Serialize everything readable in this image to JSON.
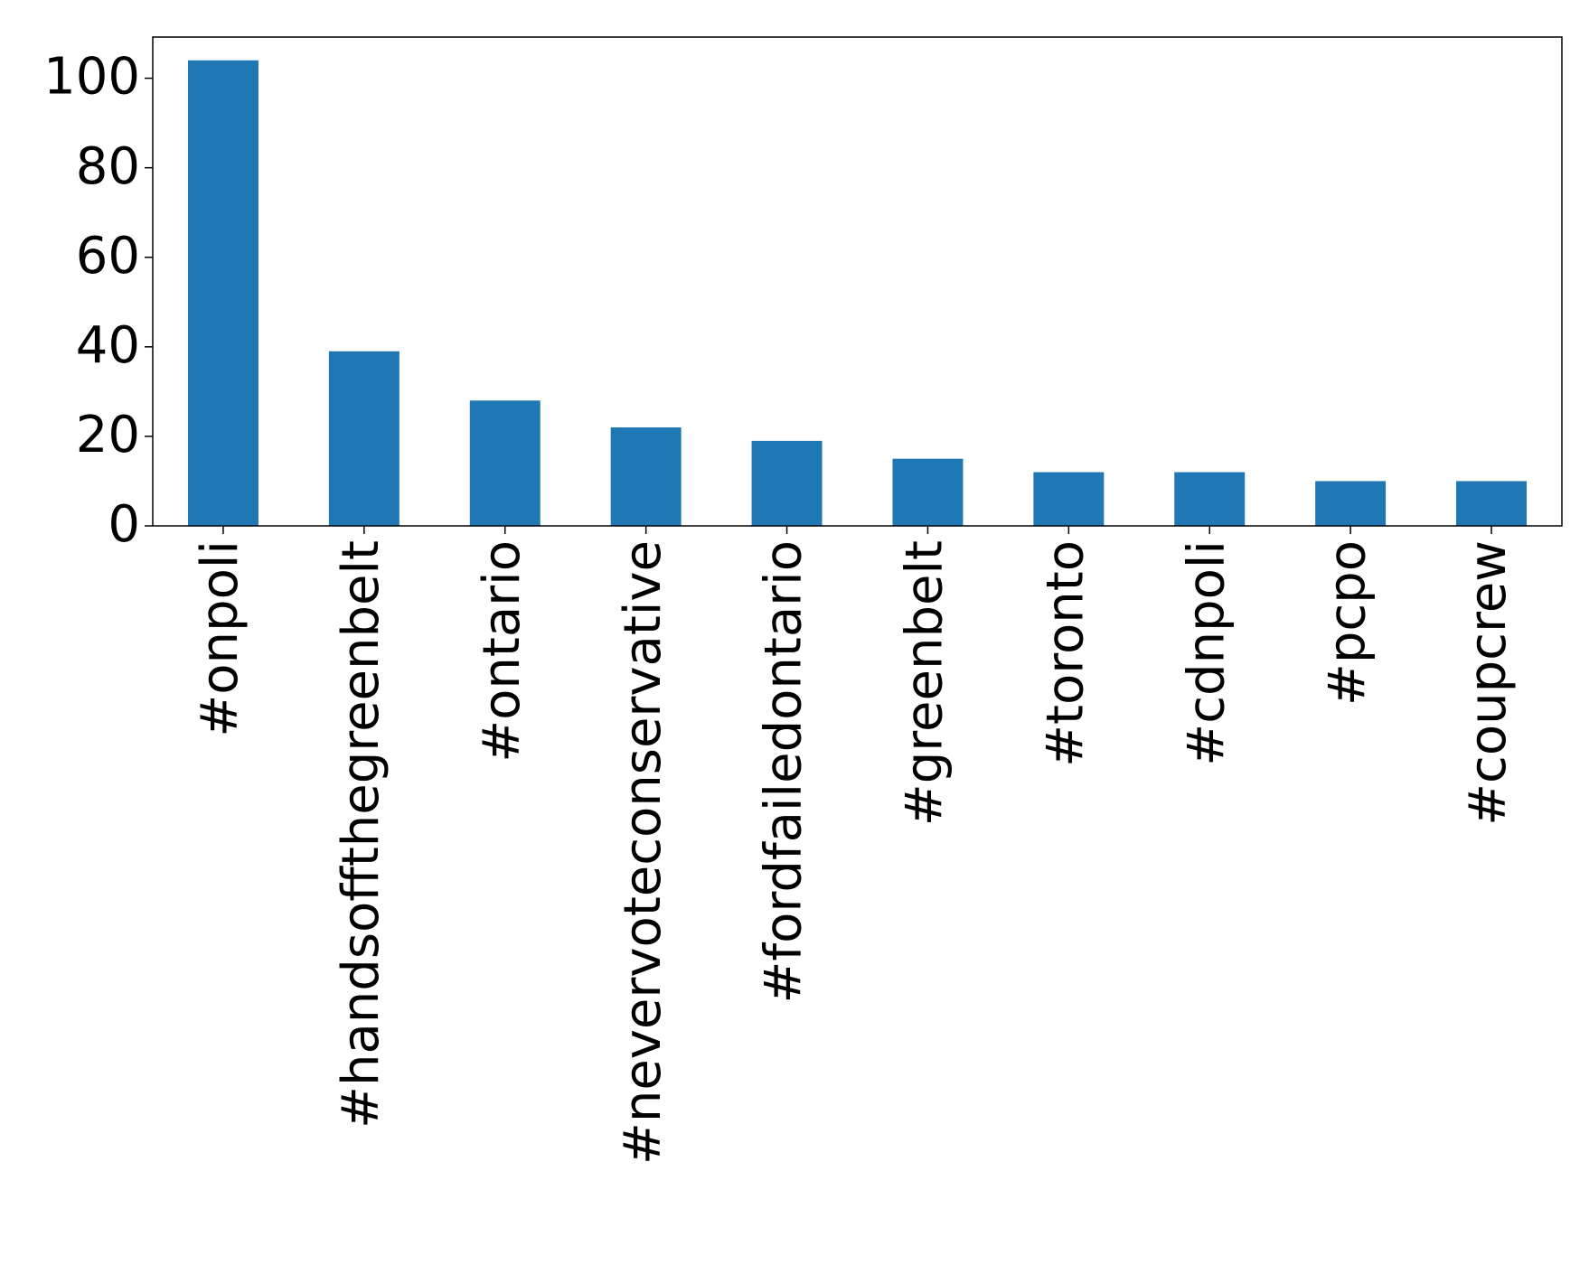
{
  "chart_data": {
    "type": "bar",
    "categories": [
      "#onpoli",
      "#handsoffthegreenbelt",
      "#ontario",
      "#nevervoteconservative",
      "#fordfailedontario",
      "#greenbelt",
      "#toronto",
      "#cdnpoli",
      "#pcpo",
      "#coupcrew"
    ],
    "values": [
      104,
      39,
      28,
      22,
      19,
      15,
      12,
      12,
      10,
      10
    ],
    "color": "#1f77b4",
    "ylim": [
      0,
      109.2
    ],
    "yticks": [
      0,
      20,
      40,
      60,
      80,
      100
    ],
    "grid": false
  }
}
